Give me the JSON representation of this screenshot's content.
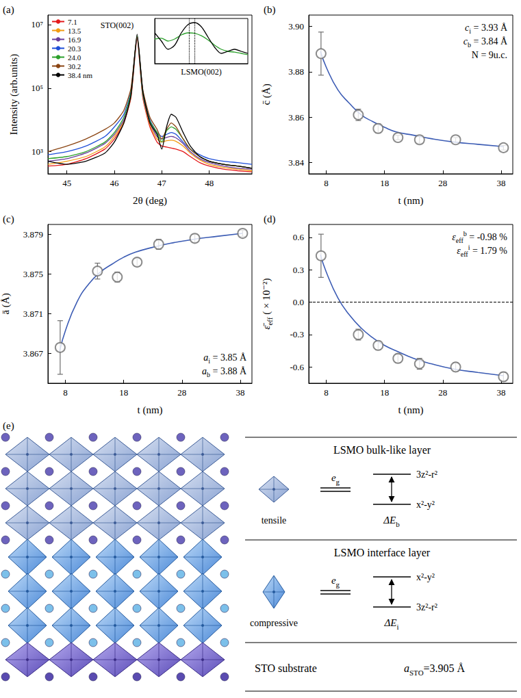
{
  "chart_data": [
    {
      "panel": "(a)",
      "type": "line",
      "log": "y",
      "grid": false,
      "legend": "upper left",
      "xlabel": "2θ (deg)",
      "ylabel": "Intensity (arb.units)",
      "xlim": [
        44.6,
        48.9
      ],
      "xticks": [
        45,
        46,
        47,
        48
      ],
      "ylim": [
        200,
        20000000
      ],
      "yticks": [
        {
          "value": 1000,
          "label": "10³"
        },
        {
          "value": 100000,
          "label": "10⁵"
        },
        {
          "value": 10000000,
          "label": "10⁷"
        }
      ],
      "x": [
        44.6,
        45.0,
        45.4,
        45.8,
        46.0,
        46.2,
        46.35,
        46.48,
        46.6,
        46.75,
        46.9,
        47.0,
        47.1,
        47.2,
        47.3,
        47.45,
        47.6,
        47.8,
        48.0,
        48.3,
        48.6,
        48.9
      ],
      "series": [
        {
          "name": "7.1",
          "color": "#e41a1c",
          "values": [
            350,
            400,
            600,
            1200,
            2500,
            8000,
            50000,
            3500000,
            50000,
            6000,
            2000,
            1500,
            1400,
            1300,
            1200,
            1000,
            700,
            450,
            350,
            280,
            250,
            230
          ]
        },
        {
          "name": "13.5",
          "color": "#f39c12",
          "values": [
            400,
            500,
            700,
            1400,
            3000,
            9000,
            55000,
            4000000,
            55000,
            7000,
            2500,
            2000,
            2200,
            2300,
            2100,
            1500,
            900,
            550,
            400,
            320,
            280,
            250
          ]
        },
        {
          "name": "16.9",
          "color": "#6a3d9a",
          "values": [
            500,
            600,
            900,
            1800,
            3500,
            10000,
            60000,
            4000000,
            60000,
            8000,
            3000,
            2500,
            2800,
            3000,
            2700,
            1800,
            1000,
            600,
            450,
            350,
            300,
            280
          ]
        },
        {
          "name": "20.3",
          "color": "#1f4fd8",
          "values": [
            800,
            1000,
            1500,
            3000,
            6000,
            15000,
            80000,
            4000000,
            80000,
            10000,
            4000,
            3000,
            3500,
            4000,
            3500,
            2000,
            1200,
            800,
            600,
            500,
            450,
            400
          ]
        },
        {
          "name": "24.0",
          "color": "#2ca02c",
          "values": [
            600,
            700,
            1000,
            2000,
            4000,
            12000,
            70000,
            4500000,
            70000,
            9000,
            4000,
            2000,
            4500,
            6000,
            5000,
            2500,
            1200,
            700,
            500,
            400,
            350,
            300
          ]
        },
        {
          "name": "30.2",
          "color": "#8b4513",
          "values": [
            1000,
            1500,
            2500,
            5000,
            8000,
            20000,
            100000,
            4000000,
            90000,
            12000,
            5000,
            2500,
            5000,
            8000,
            6000,
            2500,
            1200,
            700,
            500,
            400,
            350,
            300
          ]
        },
        {
          "name": "38.4 nm",
          "color": "#000000",
          "values": [
            500,
            400,
            500,
            900,
            2000,
            8000,
            60000,
            5000000,
            80000,
            8000,
            3500,
            1200,
            6000,
            15000,
            12000,
            4000,
            1500,
            700,
            500,
            400,
            350,
            300
          ]
        }
      ],
      "annotations": [
        "STO(002)"
      ],
      "inset": {
        "type": "line",
        "tick_labels": false,
        "xlim": [
          46.9,
          47.6
        ],
        "ylim": [
          0,
          1.1
        ],
        "x": [
          46.9,
          46.95,
          47.0,
          47.05,
          47.1,
          47.15,
          47.2,
          47.25,
          47.3,
          47.35,
          47.4,
          47.45,
          47.5,
          47.55,
          47.6
        ],
        "series": [
          {
            "color": "#2ca02c",
            "values": [
              0.6,
              0.62,
              0.55,
              0.6,
              0.7,
              0.75,
              0.74,
              0.68,
              0.58,
              0.45,
              0.35,
              0.3,
              0.28,
              0.25,
              0.22
            ]
          },
          {
            "color": "#000000",
            "values": [
              0.75,
              0.55,
              0.35,
              0.45,
              0.75,
              0.95,
              1.0,
              0.9,
              0.65,
              0.4,
              0.25,
              0.3,
              0.35,
              0.3,
              0.25
            ]
          }
        ],
        "vlines": [
          47.16,
          47.2
        ],
        "annotations": [
          "LSMO(002)"
        ]
      }
    },
    {
      "panel": "(b)",
      "type": "scatter",
      "grid": false,
      "xlabel": "t (nm)",
      "ylabel": "c̄ (Å)",
      "xlim": [
        5,
        40
      ],
      "xticks": [
        8,
        18,
        28,
        38
      ],
      "ylim": [
        3.835,
        3.905
      ],
      "yticks": [
        3.84,
        3.86,
        3.88,
        {
          "value": 3.9,
          "label": "3.90"
        }
      ],
      "series": [
        {
          "type": "scatter",
          "marker": "open_circle",
          "color": "#6e6e6e",
          "x": [
            7.1,
            13.5,
            16.9,
            20.3,
            24.0,
            30.2,
            38.4
          ],
          "values": [
            3.888,
            3.861,
            3.855,
            3.851,
            3.85,
            3.85,
            3.8465
          ],
          "errors": [
            0.0095,
            0.0025,
            0.002,
            0.001,
            0.0015,
            0.001,
            0.001
          ]
        },
        {
          "type": "line",
          "line_style": "solid",
          "color": "#3c5cb4",
          "x": [
            7,
            8,
            10,
            12,
            14,
            16,
            18,
            20,
            23,
            26,
            30,
            34,
            38.4
          ],
          "values": [
            3.889,
            3.882,
            3.872,
            3.866,
            3.861,
            3.858,
            3.8555,
            3.8535,
            3.852,
            3.8505,
            3.849,
            3.848,
            3.847
          ]
        }
      ],
      "annotations": [
        {
          "base": "c",
          "sub": "i",
          "rest": " = 3.93 Å"
        },
        {
          "base": "c",
          "sub": "b",
          "rest": " = 3.84 Å"
        },
        "N = 9u.c."
      ]
    },
    {
      "panel": "(c)",
      "type": "scatter",
      "grid": false,
      "xlabel": "t (nm)",
      "ylabel": "ā (Å)",
      "xlim": [
        5,
        40
      ],
      "xticks": [
        8,
        18,
        28,
        38
      ],
      "ylim": [
        3.864,
        3.88
      ],
      "yticks": [
        3.867,
        3.871,
        3.875,
        3.879
      ],
      "series": [
        {
          "type": "scatter",
          "marker": "open_circle",
          "color": "#6e6e6e",
          "x": [
            7.1,
            13.5,
            16.9,
            20.3,
            24.0,
            30.2,
            38.4
          ],
          "values": [
            3.8676,
            3.8753,
            3.8747,
            3.8762,
            3.878,
            3.8786,
            3.8791
          ],
          "errors": [
            0.0027,
            0.0008,
            0.0005,
            0.0004,
            0.0005,
            0.0004,
            0.0003
          ]
        },
        {
          "type": "line",
          "line_style": "solid",
          "color": "#3c5cb4",
          "x": [
            7,
            8,
            10,
            12,
            14,
            16,
            18,
            20,
            23,
            26,
            30,
            34,
            38.4
          ],
          "values": [
            3.8672,
            3.8693,
            3.8722,
            3.874,
            3.8752,
            3.876,
            3.8767,
            3.8772,
            3.8777,
            3.8781,
            3.8785,
            3.8788,
            3.8791
          ]
        }
      ],
      "annotations": [
        {
          "base": "a",
          "sub": "i",
          "rest": " = 3.85 Å"
        },
        {
          "base": "a",
          "sub": "b",
          "rest": " = 3.88 Å"
        }
      ]
    },
    {
      "panel": "(d)",
      "type": "scatter",
      "grid": false,
      "xlabel": "t (nm)",
      "ylabel": {
        "base": "ε̄",
        "sub": "eff",
        "rest": " ( × 10⁻²)"
      },
      "xlim": [
        5,
        40
      ],
      "xticks": [
        8,
        18,
        28,
        38
      ],
      "ylim": [
        -0.75,
        0.72
      ],
      "yticks": [
        -0.6,
        -0.3,
        {
          "value": 0,
          "label": "0.0"
        },
        0.3,
        0.6
      ],
      "hlines": [
        0
      ],
      "series": [
        {
          "type": "scatter",
          "marker": "open_circle",
          "color": "#6e6e6e",
          "x": [
            7.1,
            13.5,
            16.9,
            20.3,
            24.0,
            30.2,
            38.4
          ],
          "values": [
            0.43,
            -0.3,
            -0.4,
            -0.52,
            -0.57,
            -0.6,
            -0.69
          ],
          "errors": [
            0.2,
            0.05,
            0.04,
            0.04,
            0.05,
            0.04,
            0.04
          ]
        },
        {
          "type": "line",
          "line_style": "solid",
          "color": "#3c5cb4",
          "x": [
            7,
            8,
            10,
            12,
            14,
            16,
            18,
            20,
            23,
            26,
            30,
            34,
            38.4
          ],
          "values": [
            0.44,
            0.28,
            0.04,
            -0.12,
            -0.24,
            -0.33,
            -0.4,
            -0.45,
            -0.52,
            -0.57,
            -0.62,
            -0.65,
            -0.68
          ]
        }
      ],
      "annotations": [
        {
          "base": "ε",
          "sub": "eff",
          "sup": "b",
          "rest": " = -0.98 %"
        },
        {
          "base": "ε",
          "sub": "eff",
          "sup": "i",
          "rest": " = 1.79 %"
        }
      ]
    }
  ],
  "diagram": {
    "panel": "(e)",
    "layers": [
      {
        "title": "LSMO bulk-like layer",
        "strain": "tensile",
        "orbital": {
          "base": "e",
          "sub": "g"
        },
        "upper": "3z²-r²",
        "lower": "x²-y²",
        "splitting": {
          "base": "ΔE",
          "sub": "b"
        }
      },
      {
        "title": "LSMO interface layer",
        "strain": "compressive",
        "orbital": {
          "base": "e",
          "sub": "g"
        },
        "upper": "x²-y²",
        "lower": "3z²-r²",
        "splitting": {
          "base": "ΔE",
          "sub": "i"
        }
      }
    ],
    "substrate": {
      "title": "STO substrate",
      "lattice": {
        "base": "a",
        "sub": "STO",
        "rest": "=3.905 Å"
      }
    }
  }
}
